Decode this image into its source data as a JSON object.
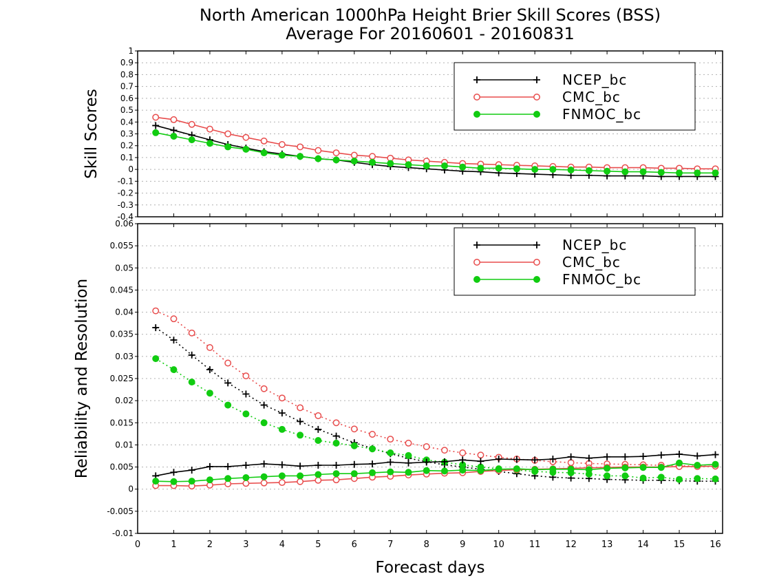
{
  "chart_data": {
    "title_line1": "North American 1000hPa Height Brier Skill Scores (BSS)",
    "title_line2": "Average For 20160601 - 20160831",
    "xlabel": "Forecast days",
    "xlim": [
      0,
      16.2
    ],
    "xticks": [
      "0",
      "1",
      "2",
      "3",
      "4",
      "5",
      "6",
      "7",
      "8",
      "9",
      "10",
      "11",
      "12",
      "13",
      "14",
      "15",
      "16"
    ],
    "x": [
      0.5,
      1,
      1.5,
      2,
      2.5,
      3,
      3.5,
      4,
      4.5,
      5,
      5.5,
      6,
      6.5,
      7,
      7.5,
      8,
      8.5,
      9,
      9.5,
      10,
      10.5,
      11,
      11.5,
      12,
      12.5,
      13,
      13.5,
      14,
      14.5,
      15,
      15.5,
      16
    ],
    "colors": {
      "NCEP_bc": "#000000",
      "CMC_bc": "#e84c4c",
      "FNMOC_bc": "#11cc11"
    },
    "panels": [
      {
        "type": "line",
        "ylabel": "Skill Scores",
        "ylim": [
          -0.4,
          1
        ],
        "yticks": [
          "-0.4",
          "-0.3",
          "-0.2",
          "-0.1",
          "0",
          "0.1",
          "0.2",
          "0.3",
          "0.4",
          "0.5",
          "0.6",
          "0.7",
          "0.8",
          "0.9",
          "1"
        ],
        "grid": true,
        "legend": "top-right",
        "series": [
          {
            "name": "NCEP_bc",
            "style": "solid",
            "marker": "plus",
            "values": [
              0.37,
              0.33,
              0.29,
              0.25,
              0.21,
              0.18,
              0.15,
              0.13,
              0.11,
              0.09,
              0.08,
              0.06,
              0.04,
              0.025,
              0.015,
              0.005,
              -0.005,
              -0.015,
              -0.02,
              -0.03,
              -0.035,
              -0.04,
              -0.045,
              -0.05,
              -0.05,
              -0.055,
              -0.055,
              -0.055,
              -0.06,
              -0.06,
              -0.06,
              -0.06
            ]
          },
          {
            "name": "CMC_bc",
            "style": "solid",
            "marker": "open-circle",
            "values": [
              0.44,
              0.42,
              0.38,
              0.34,
              0.3,
              0.27,
              0.24,
              0.21,
              0.19,
              0.16,
              0.14,
              0.12,
              0.11,
              0.095,
              0.08,
              0.07,
              0.06,
              0.05,
              0.045,
              0.04,
              0.035,
              0.03,
              0.025,
              0.02,
              0.02,
              0.015,
              0.015,
              0.015,
              0.01,
              0.01,
              0.005,
              0.005
            ]
          },
          {
            "name": "FNMOC_bc",
            "style": "solid",
            "marker": "filled-circle",
            "values": [
              0.31,
              0.28,
              0.25,
              0.22,
              0.19,
              0.17,
              0.14,
              0.12,
              0.11,
              0.09,
              0.08,
              0.07,
              0.06,
              0.05,
              0.04,
              0.03,
              0.03,
              0.02,
              0.01,
              0.01,
              0.005,
              0.0,
              0.0,
              -0.005,
              -0.01,
              -0.015,
              -0.02,
              -0.02,
              -0.025,
              -0.03,
              -0.03,
              -0.03
            ]
          }
        ]
      },
      {
        "type": "line",
        "ylabel": "Reliability and Resolution",
        "ylim": [
          -0.01,
          0.06
        ],
        "yticks": [
          "-0.01",
          "-0.005",
          "0",
          "0.005",
          "0.01",
          "0.015",
          "0.02",
          "0.025",
          "0.03",
          "0.035",
          "0.04",
          "0.045",
          "0.05",
          "0.055",
          "0.06"
        ],
        "grid": true,
        "legend": "top-right",
        "series": [
          {
            "name": "NCEP_bc",
            "style": "dotted",
            "marker": "plus",
            "values": [
              0.0365,
              0.0337,
              0.0303,
              0.027,
              0.024,
              0.0215,
              0.019,
              0.0172,
              0.0153,
              0.0135,
              0.012,
              0.0105,
              0.0092,
              0.008,
              0.007,
              0.0062,
              0.0055,
              0.005,
              0.0045,
              0.004,
              0.0035,
              0.003,
              0.0027,
              0.0025,
              0.0024,
              0.0022,
              0.0021,
              0.002,
              0.002,
              0.0019,
              0.0018,
              0.0018
            ]
          },
          {
            "name": "CMC_bc",
            "style": "dotted",
            "marker": "open-circle",
            "values": [
              0.0403,
              0.0385,
              0.0353,
              0.032,
              0.0285,
              0.0256,
              0.0227,
              0.0206,
              0.0184,
              0.0166,
              0.015,
              0.0136,
              0.0124,
              0.0113,
              0.0104,
              0.0096,
              0.0088,
              0.0082,
              0.0077,
              0.0072,
              0.0068,
              0.0065,
              0.0062,
              0.006,
              0.0058,
              0.0057,
              0.0056,
              0.0055,
              0.0054,
              0.0053,
              0.0052,
              0.0052
            ]
          },
          {
            "name": "FNMOC_bc",
            "style": "dotted",
            "marker": "filled-circle",
            "values": [
              0.0295,
              0.027,
              0.0242,
              0.0217,
              0.019,
              0.017,
              0.015,
              0.0135,
              0.0122,
              0.011,
              0.0104,
              0.0098,
              0.0091,
              0.0082,
              0.0076,
              0.0066,
              0.0061,
              0.0055,
              0.005,
              0.0046,
              0.0043,
              0.004,
              0.0038,
              0.0037,
              0.0034,
              0.003,
              0.003,
              0.0025,
              0.0027,
              0.0022,
              0.0024,
              0.0023
            ]
          },
          {
            "name": "NCEP_bc",
            "style": "solid",
            "marker": "plus",
            "legend": false,
            "values": [
              0.003,
              0.0038,
              0.0043,
              0.0051,
              0.0051,
              0.0054,
              0.0057,
              0.0055,
              0.0052,
              0.0054,
              0.0054,
              0.0056,
              0.0057,
              0.0061,
              0.0059,
              0.0061,
              0.0062,
              0.0066,
              0.0063,
              0.0068,
              0.0067,
              0.0066,
              0.0068,
              0.0073,
              0.007,
              0.0073,
              0.0073,
              0.0074,
              0.0077,
              0.0079,
              0.0075,
              0.0078
            ]
          },
          {
            "name": "CMC_bc",
            "style": "solid",
            "marker": "open-circle",
            "legend": false,
            "values": [
              0.0008,
              0.0008,
              0.0007,
              0.0009,
              0.0012,
              0.0013,
              0.0014,
              0.0015,
              0.0017,
              0.002,
              0.0021,
              0.0024,
              0.0027,
              0.0029,
              0.0032,
              0.0034,
              0.0036,
              0.0037,
              0.004,
              0.0042,
              0.0044,
              0.0045,
              0.0046,
              0.0047,
              0.0048,
              0.0049,
              0.005,
              0.005,
              0.005,
              0.0051,
              0.0051,
              0.0052
            ]
          },
          {
            "name": "FNMOC_bc",
            "style": "solid",
            "marker": "filled-circle",
            "legend": false,
            "values": [
              0.0018,
              0.0017,
              0.0018,
              0.0021,
              0.0024,
              0.0026,
              0.0028,
              0.003,
              0.003,
              0.0033,
              0.0035,
              0.0035,
              0.0037,
              0.0039,
              0.0038,
              0.0042,
              0.0041,
              0.0043,
              0.0042,
              0.0045,
              0.0046,
              0.0044,
              0.0045,
              0.0045,
              0.0044,
              0.0047,
              0.0048,
              0.0049,
              0.0049,
              0.0059,
              0.0054,
              0.0056
            ]
          }
        ]
      }
    ]
  }
}
